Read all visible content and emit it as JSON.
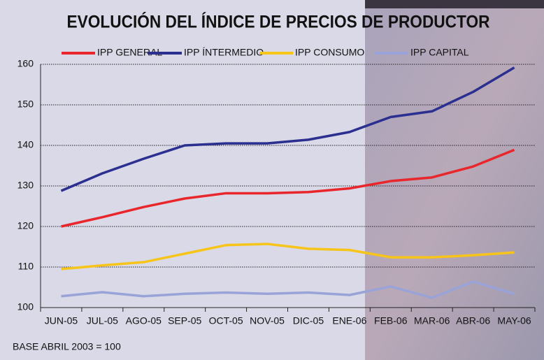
{
  "chart_data": {
    "type": "line",
    "title": "EVOLUCIÓN DEL ÍNDICE DE PRECIOS DE PRODUCTOR",
    "note": "BASE ABRIL 2003 = 100",
    "categories": [
      "JUN-05",
      "JUL-05",
      "AGO-05",
      "SEP-05",
      "OCT-05",
      "NOV-05",
      "DIC-05",
      "ENE-06",
      "FEB-06",
      "MAR-06",
      "ABR-06",
      "MAY-06"
    ],
    "series": [
      {
        "name": "IPP GENERAL",
        "color": "#e8262c",
        "values": [
          120,
          122.3,
          124.8,
          126.9,
          128.2,
          128.2,
          128.5,
          129.4,
          131.2,
          132.1,
          134.8,
          138.9
        ]
      },
      {
        "name": "IPP ÍNTERMEDIO",
        "color": "#2b2f8f",
        "values": [
          128.8,
          133.1,
          136.7,
          140.0,
          140.5,
          140.5,
          141.4,
          143.3,
          147.0,
          148.4,
          153.2,
          159.2
        ]
      },
      {
        "name": "IPP CONSUMO",
        "color": "#f7c51a",
        "values": [
          109.5,
          110.4,
          111.2,
          113.3,
          115.4,
          115.7,
          114.5,
          114.2,
          112.4,
          112.4,
          112.9,
          113.6
        ]
      },
      {
        "name": "IPP CAPITAL",
        "color": "#9aa3d8",
        "values": [
          102.8,
          103.8,
          102.8,
          103.4,
          103.7,
          103.4,
          103.7,
          103.1,
          105.2,
          102.4,
          106.4,
          103.4
        ]
      }
    ],
    "ylim": [
      100,
      160
    ],
    "yticks": [
      100,
      110,
      120,
      130,
      140,
      150,
      160
    ],
    "grid": true
  }
}
